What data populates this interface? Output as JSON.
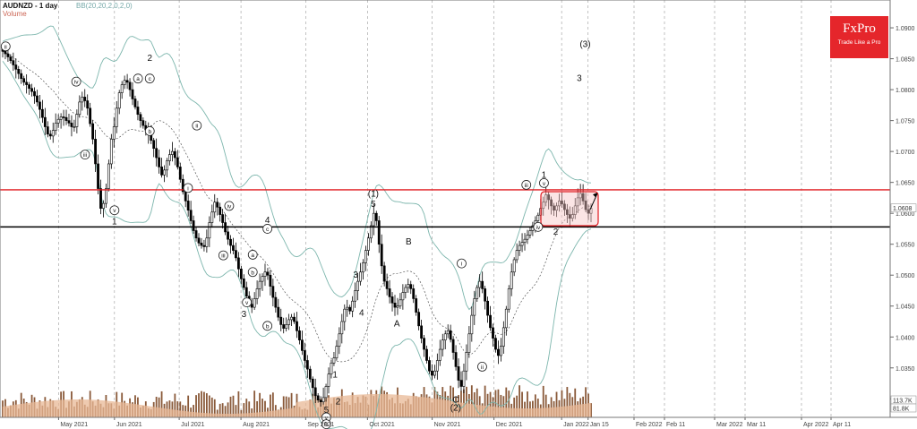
{
  "header": {
    "symbol": "AUDNZD - 1 day",
    "indicator_bb": "BB(20,20,2,0,2,0)",
    "indicator_volume": "Volume"
  },
  "logo": {
    "brand": "FxPro",
    "tagline": "Trade Like a Pro"
  },
  "colors": {
    "resistance": "#e0191f",
    "support": "#000000",
    "bands": "#7db6ad",
    "volume": "#e8b896",
    "candle": "#000000",
    "axis_text": "#444444",
    "grid": "#9a9a9a"
  },
  "chart_data": {
    "type": "candlestick",
    "symbol": "AUDNZD",
    "timeframe": "1 day",
    "ylim": [
      1.027,
      1.0945
    ],
    "y_ticks": [
      "1.0900",
      "1.0850",
      "1.0800",
      "1.0750",
      "1.0700",
      "1.0650",
      "1.0600",
      "1.0550",
      "1.0500",
      "1.0450",
      "1.0400",
      "1.0350",
      "1.0300"
    ],
    "x_ticks": [
      "May 2021",
      "Jun 2021",
      "Jul 2021",
      "Aug 2021",
      "Sep 2021",
      "Oct 2021",
      "Nov 2021",
      "Dec 2021",
      "Jan 2022",
      "Jan 15",
      "Feb 2022",
      "Feb 11",
      "Mar 2022",
      "Mar 11",
      "Apr 2022",
      "Apr 11"
    ],
    "current_price": "1.0608",
    "volume_readouts": [
      "113.7K",
      "81.8K"
    ],
    "resistance_level": 1.0638,
    "support_level": 1.0578,
    "consolidation_box": {
      "from": "2021-12-28",
      "to": "2022-01-14",
      "low": 1.058,
      "high": 1.0635
    },
    "close_series": [
      1.0862,
      1.0858,
      1.0853,
      1.0847,
      1.084,
      1.0833,
      1.0826,
      1.0818,
      1.0812,
      1.0808,
      1.0802,
      1.0797,
      1.079,
      1.078,
      1.0768,
      1.0755,
      1.074,
      1.0728,
      1.0725,
      1.0734,
      1.0746,
      1.0752,
      1.0756,
      1.0755,
      1.075,
      1.0746,
      1.074,
      1.074,
      1.076,
      1.078,
      1.0788,
      1.0782,
      1.077,
      1.0745,
      1.072,
      1.068,
      1.064,
      1.0608,
      1.0616,
      1.064,
      1.068,
      1.072,
      1.074,
      1.077,
      1.0795,
      1.0808,
      1.0815,
      1.0812,
      1.08,
      1.0785,
      1.0772,
      1.076,
      1.075,
      1.0742,
      1.0735,
      1.0728,
      1.0718,
      1.0705,
      1.069,
      1.0675,
      1.0662,
      1.067,
      1.0685,
      1.0695,
      1.07,
      1.069,
      1.0675,
      1.0655,
      1.0635,
      1.062,
      1.0605,
      1.0588,
      1.0572,
      1.056,
      1.0552,
      1.0548,
      1.0546,
      1.056,
      1.0585,
      1.0602,
      1.0618,
      1.061,
      1.0598,
      1.0585,
      1.057,
      1.0558,
      1.0548,
      1.054,
      1.0528,
      1.051,
      1.0494,
      1.048,
      1.0466,
      1.0453,
      1.0448,
      1.0462,
      1.0478,
      1.049,
      1.0498,
      1.0505,
      1.05,
      1.0482,
      1.0464,
      1.0448,
      1.0432,
      1.042,
      1.0414,
      1.042,
      1.0428,
      1.0432,
      1.0425,
      1.041,
      1.0395,
      1.0378,
      1.0362,
      1.0348,
      1.0332,
      1.0318,
      1.0305,
      1.0298,
      1.0295,
      1.0302,
      1.032,
      1.034,
      1.0358,
      1.0366,
      1.0385,
      1.0405,
      1.0425,
      1.0445,
      1.0448,
      1.0442,
      1.0458,
      1.0475,
      1.049,
      1.0505,
      1.052,
      1.054,
      1.056,
      1.058,
      1.06,
      1.0588,
      1.055,
      1.0515,
      1.049,
      1.0478,
      1.0465,
      1.0455,
      1.0448,
      1.045,
      1.046,
      1.0472,
      1.048,
      1.0485,
      1.0478,
      1.0462,
      1.044,
      1.0418,
      1.0398,
      1.038,
      1.0362,
      1.0345,
      1.0338,
      1.0345,
      1.0362,
      1.038,
      1.0395,
      1.0405,
      1.041,
      1.0396,
      1.0375,
      1.0352,
      1.033,
      1.032,
      1.0345,
      1.0375,
      1.0405,
      1.0435,
      1.0462,
      1.048,
      1.049,
      1.0478,
      1.0458,
      1.0435,
      1.0415,
      1.0398,
      1.038,
      1.037,
      1.0385,
      1.0415,
      1.0445,
      1.0478,
      1.0505,
      1.0525,
      1.054,
      1.0548,
      1.0553,
      1.0558,
      1.0565,
      1.0572,
      1.058,
      1.0588,
      1.0597,
      1.0608,
      1.0618,
      1.063,
      1.0622,
      1.0612,
      1.0605,
      1.0612,
      1.062,
      1.0615,
      1.0606,
      1.0598,
      1.0592,
      1.0598,
      1.0612,
      1.0625,
      1.0632,
      1.062,
      1.0606,
      1.06,
      1.0608
    ]
  },
  "annotations": [
    {
      "text": "ii",
      "circled": true,
      "t": 0.5,
      "p": 1.087
    },
    {
      "text": "iv",
      "circled": true,
      "t": 12.5,
      "p": 1.0813
    },
    {
      "text": "2",
      "circled": false,
      "t": 25,
      "p": 1.0852
    },
    {
      "text": "a",
      "circled": true,
      "t": 23,
      "p": 1.0818
    },
    {
      "text": "c",
      "circled": true,
      "t": 25,
      "p": 1.0818
    },
    {
      "text": "b",
      "circled": true,
      "t": 25,
      "p": 1.0733
    },
    {
      "text": "iii",
      "circled": true,
      "t": 14,
      "p": 1.0695
    },
    {
      "text": "ii",
      "circled": true,
      "t": 33,
      "p": 1.0742
    },
    {
      "text": "i",
      "circled": true,
      "t": 31.5,
      "p": 1.0641
    },
    {
      "text": "v",
      "circled": true,
      "t": 19,
      "p": 1.0605
    },
    {
      "text": "1",
      "circled": false,
      "t": 19,
      "p": 1.0588
    },
    {
      "text": "iv",
      "circled": true,
      "t": 38.5,
      "p": 1.0612
    },
    {
      "text": "4",
      "circled": false,
      "t": 45,
      "p": 1.059
    },
    {
      "text": "c",
      "circled": true,
      "t": 45,
      "p": 1.0575
    },
    {
      "text": "iii",
      "circled": true,
      "t": 37.5,
      "p": 1.0532
    },
    {
      "text": "a",
      "circled": true,
      "t": 42.5,
      "p": 1.0533
    },
    {
      "text": "b",
      "circled": true,
      "t": 42.5,
      "p": 1.0505
    },
    {
      "text": "v",
      "circled": true,
      "t": 41.5,
      "p": 1.0456
    },
    {
      "text": "3",
      "circled": false,
      "t": 41,
      "p": 1.0438
    },
    {
      "text": "b",
      "circled": true,
      "t": 45,
      "p": 1.0418
    },
    {
      "text": "1",
      "circled": false,
      "t": 56.5,
      "p": 1.034
    },
    {
      "text": "2",
      "circled": false,
      "t": 57,
      "p": 1.0297
    },
    {
      "text": "5",
      "circled": false,
      "t": 55,
      "p": 1.0283
    },
    {
      "text": "v",
      "circled": true,
      "t": 55,
      "p": 1.027
    },
    {
      "text": "B",
      "circled": true,
      "t": 55,
      "p": 1.0259
    },
    {
      "text": "(1)",
      "circled": false,
      "t": 63,
      "p": 1.0633
    },
    {
      "text": "5",
      "circled": false,
      "t": 63,
      "p": 1.0616
    },
    {
      "text": "3",
      "circled": false,
      "t": 60,
      "p": 1.0502
    },
    {
      "text": "4",
      "circled": false,
      "t": 61,
      "p": 1.044
    },
    {
      "text": "B",
      "circled": false,
      "t": 69,
      "p": 1.0555
    },
    {
      "text": "A",
      "circled": false,
      "t": 67,
      "p": 1.0423
    },
    {
      "text": "i",
      "circled": true,
      "t": 78,
      "p": 1.0519
    },
    {
      "text": "ii",
      "circled": true,
      "t": 81.5,
      "p": 1.0352
    },
    {
      "text": "C",
      "circled": false,
      "t": 77,
      "p": 1.03
    },
    {
      "text": "(2)",
      "circled": false,
      "t": 77,
      "p": 1.0287
    },
    {
      "text": "iii",
      "circled": true,
      "t": 89,
      "p": 1.0646
    },
    {
      "text": "v",
      "circled": true,
      "t": 92,
      "p": 1.0649
    },
    {
      "text": "1",
      "circled": false,
      "t": 92,
      "p": 1.0663
    },
    {
      "text": "iv",
      "circled": true,
      "t": 91,
      "p": 1.0578
    },
    {
      "text": "2",
      "circled": false,
      "t": 94,
      "p": 1.0571
    },
    {
      "text": "(3)",
      "circled": false,
      "t": 99,
      "p": 1.0875
    },
    {
      "text": "3",
      "circled": false,
      "t": 98,
      "p": 1.082
    }
  ]
}
